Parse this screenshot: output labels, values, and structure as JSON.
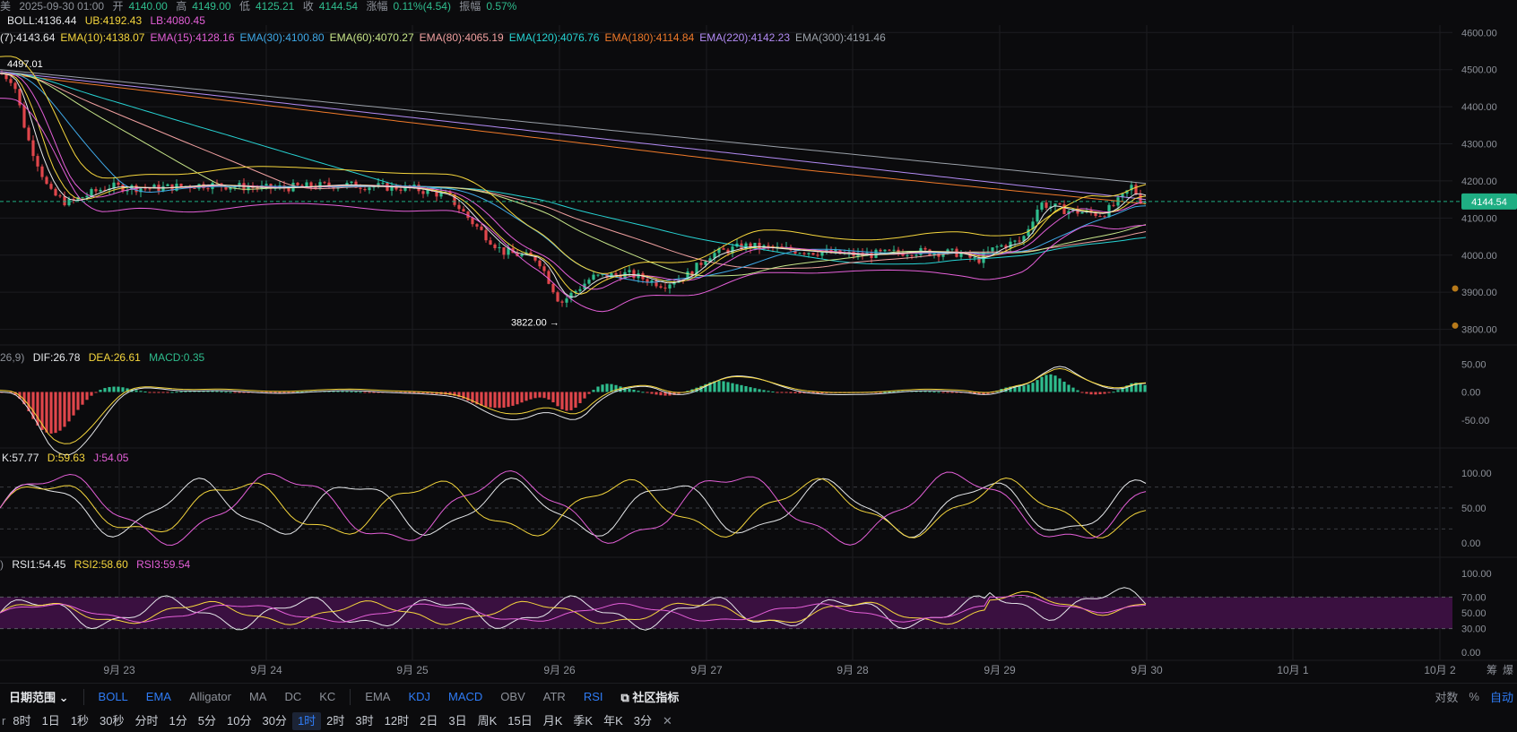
{
  "header": {
    "prefix": "美",
    "time": "2025-09-30 01:00",
    "open_label": "开",
    "open": "4140.00",
    "high_label": "高",
    "high": "4149.00",
    "low_label": "低",
    "low": "4125.21",
    "close_label": "收",
    "close": "4144.54",
    "change_label": "涨幅",
    "change": "0.11%(4.54)",
    "amp_label": "振幅",
    "amp": "0.57%"
  },
  "boll": {
    "mid": "BOLL:4136.44",
    "ub": "UB:4192.43",
    "lb": "LB:4080.45"
  },
  "ema_line": [
    {
      "text": "(7):4143.64",
      "color": "#e6e8eb"
    },
    {
      "text": "EMA(10):4138.07",
      "color": "#f5d63d"
    },
    {
      "text": "EMA(15):4128.16",
      "color": "#e45fd8"
    },
    {
      "text": "EMA(30):4100.80",
      "color": "#3fa9e8"
    },
    {
      "text": "EMA(60):4070.27",
      "color": "#c8e68a"
    },
    {
      "text": "EMA(80):4065.19",
      "color": "#f0a0a0"
    },
    {
      "text": "EMA(120):4076.76",
      "color": "#27d3d3"
    },
    {
      "text": "EMA(180):4114.84",
      "color": "#f07a2a"
    },
    {
      "text": "EMA(220):4142.23",
      "color": "#b38cf5"
    },
    {
      "text": "EMA(300):4191.46",
      "color": "#9aa0a8"
    }
  ],
  "price_axis": [
    "4600.00",
    "4500.00",
    "4400.00",
    "4300.00",
    "4200.00",
    "4100.00",
    "4000.00",
    "3900.00",
    "3800.00"
  ],
  "last_price": "4144.54",
  "annotations": {
    "high": "4497.01",
    "low": "3822.00"
  },
  "macd": {
    "prefix": "26,9)",
    "dif": "DIF:26.78",
    "dea": "DEA:26.61",
    "macd": "MACD:0.35",
    "axis": [
      "50.00",
      "0.00",
      "-50.00"
    ]
  },
  "kdj": {
    "k": "K:57.77",
    "d": "D:59.63",
    "j": "J:54.05",
    "axis": [
      "100.00",
      "50.00",
      "0.00"
    ]
  },
  "rsi": {
    "prefix": ")",
    "rsi1": "RSI1:54.45",
    "rsi2": "RSI2:58.60",
    "rsi3": "RSI3:59.54",
    "axis": [
      "100.00",
      "70.00",
      "50.00",
      "30.00",
      "0.00"
    ]
  },
  "date_axis": [
    "9月 23",
    "9月 24",
    "9月 25",
    "9月 26",
    "9月 27",
    "9月 28",
    "9月 29",
    "9月 30",
    "10月 1",
    "10月 2"
  ],
  "corner": {
    "a": "筹",
    "b": "爆"
  },
  "toolbar": {
    "range": "日期范围",
    "main": [
      "BOLL",
      "EMA",
      "Alligator",
      "MA",
      "DC",
      "KC"
    ],
    "main_active": [
      "BOLL",
      "EMA"
    ],
    "sub": [
      "EMA",
      "KDJ",
      "MACD",
      "OBV",
      "ATR",
      "RSI"
    ],
    "sub_active": [
      "KDJ",
      "MACD",
      "RSI"
    ],
    "community": "社区指标",
    "right": [
      "对数",
      "%",
      "自动"
    ]
  },
  "timebar": {
    "lead": "r",
    "items": [
      "8时",
      "1日",
      "1秒",
      "30秒",
      "分时",
      "1分",
      "5分",
      "10分",
      "30分",
      "1时",
      "2时",
      "3时",
      "12时",
      "2日",
      "3日",
      "周K",
      "15日",
      "月K",
      "季K",
      "年K",
      "3分"
    ],
    "selected": "1时",
    "close": "✕"
  },
  "colors": {
    "up": "#2fbd8e",
    "down": "#e0464b",
    "ub": "#f5d63d",
    "lb": "#e45fd8",
    "mid": "#e6e8eb",
    "grid": "#1c1d21",
    "axis_text": "#8d9199",
    "last_price_bg": "#1fae83",
    "accent": "#2f7cf6"
  }
}
